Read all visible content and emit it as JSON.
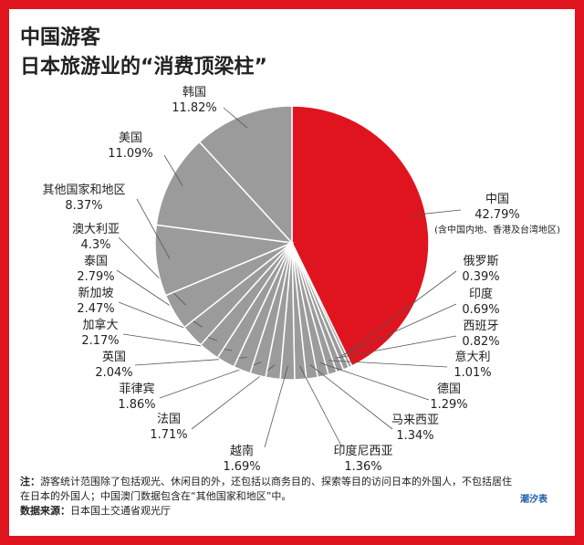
{
  "chart_data": {
    "type": "pie",
    "title_lines": [
      "中国游客",
      "日本旅游业的“消费顶梁柱”"
    ],
    "categories": [
      "中国",
      "俄罗斯",
      "印度",
      "西班牙",
      "意大利",
      "德国",
      "马来西亚",
      "印度尼西亚",
      "越南",
      "法国",
      "菲律宾",
      "英国",
      "加拿大",
      "新加坡",
      "泰国",
      "澳大利亚",
      "其他国家和地区",
      "美国",
      "韩国"
    ],
    "values": [
      42.79,
      0.39,
      0.69,
      0.82,
      1.01,
      1.29,
      1.34,
      1.36,
      1.69,
      1.71,
      1.86,
      2.04,
      2.17,
      2.47,
      2.79,
      4.3,
      8.37,
      11.09,
      11.82
    ],
    "value_labels": [
      "42.79%",
      "0.39%",
      "0.69%",
      "0.82%",
      "1.01%",
      "1.29%",
      "1.34%",
      "1.36%",
      "1.69%",
      "1.71%",
      "1.86%",
      "2.04%",
      "2.17%",
      "2.47%",
      "2.79%",
      "4.3%",
      "8.37%",
      "11.09%",
      "11.82%"
    ],
    "colors": [
      "#e0141e",
      "#9b9b9b",
      "#9b9b9b",
      "#9b9b9b",
      "#9b9b9b",
      "#9b9b9b",
      "#9b9b9b",
      "#9b9b9b",
      "#9b9b9b",
      "#9b9b9b",
      "#9b9b9b",
      "#9b9b9b",
      "#9b9b9b",
      "#9b9b9b",
      "#9b9b9b",
      "#9b9b9b",
      "#9b9b9b",
      "#9b9b9b",
      "#9b9b9b"
    ],
    "annotation": "(含中国内地、香港及台湾地区)",
    "note_label": "注：",
    "note": "游客统计范围除了包括观光、休闲目的外，还包括以商务目的、探索等目的访问日本的外国人，不包括居住在日本的外国人；中国澳门数据包含在“其他国家和地区”中。",
    "source_label": "数据来源：",
    "source": "日本国土交通省观光厅",
    "brand": "潮汐表"
  }
}
